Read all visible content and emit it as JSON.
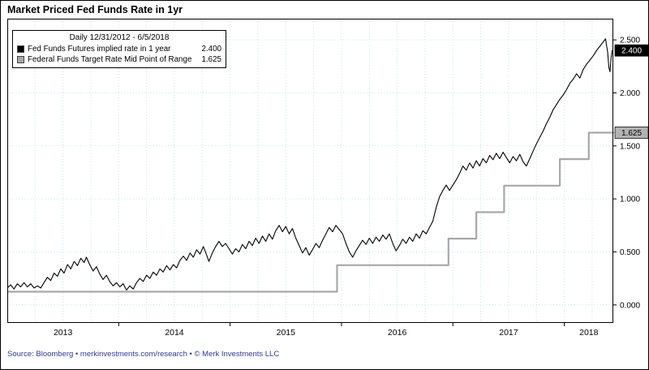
{
  "title": "Market Priced Fed Funds Rate in 1yr",
  "source_line": "Source: Bloomberg • merkinvestments.com/research • © Merk Investments LLC",
  "legend": {
    "title": "Daily 12/31/2012 - 6/5/2018",
    "items": [
      {
        "label": "Fed Funds Futures implied rate in 1 year",
        "value": "2.400",
        "color": "#000000"
      },
      {
        "label": "Federal Funds Target Rate Mid Point of Range",
        "value": "1.625",
        "color": "#a8a8a8"
      }
    ]
  },
  "value_tags": [
    {
      "text": "2.400",
      "value": 2.4,
      "bg": "#000000",
      "fg": "#ffffff"
    },
    {
      "text": "1.625",
      "value": 1.625,
      "bg": "#b2b2b2",
      "fg": "#000000"
    }
  ],
  "chart_data": {
    "type": "line",
    "title": "Market Priced Fed Funds Rate in 1yr",
    "xlabel": "",
    "ylabel": "",
    "date_range": "Daily 12/31/2012 - 6/5/2018",
    "x_range": [
      2013.0,
      2018.44
    ],
    "y_range": [
      -0.17,
      2.7
    ],
    "y_ticks": [
      0.0,
      0.5,
      1.0,
      1.5,
      2.0,
      2.5
    ],
    "y_tick_labels": [
      "0.000",
      "0.500",
      "1.000",
      "1.500",
      "2.000",
      "2.500"
    ],
    "x_tick_years": [
      2013,
      2014,
      2015,
      2016,
      2017,
      2018
    ],
    "x_tick_labels": [
      "2013",
      "2014",
      "2015",
      "2016",
      "2017",
      "2018"
    ],
    "grid": {
      "on": true,
      "color": "#bfe3e7",
      "vertical_step_years": 0.25
    },
    "legend_position": "top-left",
    "axis_side": "right",
    "last_values": {
      "futures_implied_1yr": 2.4,
      "target_rate_midpoint": 1.625
    },
    "series": [
      {
        "id": "futures-implied-rate-series",
        "name": "Fed Funds Futures implied rate in 1 year",
        "color": "#000000",
        "width": 1.1,
        "points": [
          [
            2013.0,
            0.16
          ],
          [
            2013.03,
            0.19
          ],
          [
            2013.06,
            0.15
          ],
          [
            2013.09,
            0.2
          ],
          [
            2013.12,
            0.17
          ],
          [
            2013.15,
            0.21
          ],
          [
            2013.18,
            0.17
          ],
          [
            2013.21,
            0.2
          ],
          [
            2013.24,
            0.16
          ],
          [
            2013.27,
            0.18
          ],
          [
            2013.3,
            0.16
          ],
          [
            2013.33,
            0.21
          ],
          [
            2013.36,
            0.26
          ],
          [
            2013.39,
            0.23
          ],
          [
            2013.42,
            0.3
          ],
          [
            2013.45,
            0.27
          ],
          [
            2013.48,
            0.34
          ],
          [
            2013.51,
            0.3
          ],
          [
            2013.54,
            0.38
          ],
          [
            2013.57,
            0.34
          ],
          [
            2013.6,
            0.41
          ],
          [
            2013.63,
            0.37
          ],
          [
            2013.66,
            0.44
          ],
          [
            2013.69,
            0.4
          ],
          [
            2013.71,
            0.45
          ],
          [
            2013.74,
            0.38
          ],
          [
            2013.77,
            0.32
          ],
          [
            2013.8,
            0.36
          ],
          [
            2013.83,
            0.29
          ],
          [
            2013.86,
            0.24
          ],
          [
            2013.89,
            0.28
          ],
          [
            2013.92,
            0.22
          ],
          [
            2013.95,
            0.18
          ],
          [
            2013.98,
            0.21
          ],
          [
            2014.01,
            0.17
          ],
          [
            2014.04,
            0.2
          ],
          [
            2014.07,
            0.14
          ],
          [
            2014.1,
            0.18
          ],
          [
            2014.13,
            0.15
          ],
          [
            2014.16,
            0.21
          ],
          [
            2014.19,
            0.25
          ],
          [
            2014.22,
            0.22
          ],
          [
            2014.25,
            0.28
          ],
          [
            2014.28,
            0.25
          ],
          [
            2014.31,
            0.31
          ],
          [
            2014.34,
            0.28
          ],
          [
            2014.37,
            0.34
          ],
          [
            2014.4,
            0.31
          ],
          [
            2014.43,
            0.37
          ],
          [
            2014.46,
            0.33
          ],
          [
            2014.49,
            0.38
          ],
          [
            2014.52,
            0.35
          ],
          [
            2014.55,
            0.42
          ],
          [
            2014.58,
            0.46
          ],
          [
            2014.61,
            0.42
          ],
          [
            2014.64,
            0.49
          ],
          [
            2014.67,
            0.45
          ],
          [
            2014.7,
            0.52
          ],
          [
            2014.73,
            0.48
          ],
          [
            2014.76,
            0.55
          ],
          [
            2014.79,
            0.47
          ],
          [
            2014.81,
            0.41
          ],
          [
            2014.84,
            0.49
          ],
          [
            2014.87,
            0.55
          ],
          [
            2014.9,
            0.6
          ],
          [
            2014.93,
            0.55
          ],
          [
            2014.96,
            0.58
          ],
          [
            2014.99,
            0.53
          ],
          [
            2015.02,
            0.48
          ],
          [
            2015.05,
            0.53
          ],
          [
            2015.08,
            0.5
          ],
          [
            2015.11,
            0.57
          ],
          [
            2015.14,
            0.53
          ],
          [
            2015.17,
            0.6
          ],
          [
            2015.2,
            0.56
          ],
          [
            2015.23,
            0.63
          ],
          [
            2015.26,
            0.58
          ],
          [
            2015.29,
            0.65
          ],
          [
            2015.32,
            0.6
          ],
          [
            2015.35,
            0.67
          ],
          [
            2015.38,
            0.62
          ],
          [
            2015.41,
            0.7
          ],
          [
            2015.44,
            0.75
          ],
          [
            2015.47,
            0.69
          ],
          [
            2015.5,
            0.74
          ],
          [
            2015.53,
            0.67
          ],
          [
            2015.56,
            0.72
          ],
          [
            2015.59,
            0.63
          ],
          [
            2015.62,
            0.56
          ],
          [
            2015.65,
            0.49
          ],
          [
            2015.68,
            0.54
          ],
          [
            2015.71,
            0.47
          ],
          [
            2015.74,
            0.52
          ],
          [
            2015.77,
            0.58
          ],
          [
            2015.8,
            0.54
          ],
          [
            2015.83,
            0.61
          ],
          [
            2015.86,
            0.67
          ],
          [
            2015.89,
            0.73
          ],
          [
            2015.92,
            0.69
          ],
          [
            2015.95,
            0.75
          ],
          [
            2015.98,
            0.71
          ],
          [
            2016.01,
            0.67
          ],
          [
            2016.04,
            0.58
          ],
          [
            2016.07,
            0.5
          ],
          [
            2016.1,
            0.45
          ],
          [
            2016.13,
            0.51
          ],
          [
            2016.16,
            0.56
          ],
          [
            2016.19,
            0.61
          ],
          [
            2016.22,
            0.57
          ],
          [
            2016.25,
            0.63
          ],
          [
            2016.28,
            0.58
          ],
          [
            2016.31,
            0.64
          ],
          [
            2016.34,
            0.6
          ],
          [
            2016.37,
            0.66
          ],
          [
            2016.4,
            0.62
          ],
          [
            2016.43,
            0.67
          ],
          [
            2016.46,
            0.58
          ],
          [
            2016.49,
            0.51
          ],
          [
            2016.52,
            0.56
          ],
          [
            2016.55,
            0.62
          ],
          [
            2016.58,
            0.58
          ],
          [
            2016.61,
            0.64
          ],
          [
            2016.64,
            0.6
          ],
          [
            2016.67,
            0.67
          ],
          [
            2016.7,
            0.63
          ],
          [
            2016.73,
            0.7
          ],
          [
            2016.76,
            0.67
          ],
          [
            2016.79,
            0.73
          ],
          [
            2016.82,
            0.79
          ],
          [
            2016.85,
            0.92
          ],
          [
            2016.88,
            1.02
          ],
          [
            2016.91,
            1.08
          ],
          [
            2016.94,
            1.13
          ],
          [
            2016.97,
            1.08
          ],
          [
            2017.0,
            1.13
          ],
          [
            2017.03,
            1.18
          ],
          [
            2017.06,
            1.24
          ],
          [
            2017.09,
            1.31
          ],
          [
            2017.12,
            1.27
          ],
          [
            2017.15,
            1.34
          ],
          [
            2017.18,
            1.29
          ],
          [
            2017.21,
            1.36
          ],
          [
            2017.24,
            1.31
          ],
          [
            2017.27,
            1.38
          ],
          [
            2017.3,
            1.34
          ],
          [
            2017.33,
            1.41
          ],
          [
            2017.36,
            1.37
          ],
          [
            2017.39,
            1.43
          ],
          [
            2017.42,
            1.38
          ],
          [
            2017.45,
            1.44
          ],
          [
            2017.48,
            1.39
          ],
          [
            2017.51,
            1.34
          ],
          [
            2017.54,
            1.4
          ],
          [
            2017.57,
            1.36
          ],
          [
            2017.6,
            1.42
          ],
          [
            2017.63,
            1.35
          ],
          [
            2017.66,
            1.31
          ],
          [
            2017.69,
            1.38
          ],
          [
            2017.72,
            1.45
          ],
          [
            2017.75,
            1.52
          ],
          [
            2017.78,
            1.58
          ],
          [
            2017.81,
            1.64
          ],
          [
            2017.84,
            1.71
          ],
          [
            2017.87,
            1.77
          ],
          [
            2017.9,
            1.84
          ],
          [
            2017.93,
            1.89
          ],
          [
            2017.96,
            1.94
          ],
          [
            2017.99,
            1.98
          ],
          [
            2018.02,
            2.03
          ],
          [
            2018.05,
            2.09
          ],
          [
            2018.08,
            2.13
          ],
          [
            2018.11,
            2.18
          ],
          [
            2018.14,
            2.14
          ],
          [
            2018.17,
            2.22
          ],
          [
            2018.2,
            2.27
          ],
          [
            2018.23,
            2.31
          ],
          [
            2018.26,
            2.35
          ],
          [
            2018.29,
            2.4
          ],
          [
            2018.32,
            2.44
          ],
          [
            2018.35,
            2.48
          ],
          [
            2018.37,
            2.51
          ],
          [
            2018.39,
            2.38
          ],
          [
            2018.4,
            2.24
          ],
          [
            2018.41,
            2.2
          ],
          [
            2018.42,
            2.33
          ],
          [
            2018.43,
            2.4
          ]
        ]
      },
      {
        "id": "target-rate-midpoint-series",
        "name": "Federal Funds Target Rate Mid Point of Range",
        "color": "#a8a8a8",
        "width": 2.2,
        "points": [
          [
            2013.0,
            0.125
          ],
          [
            2015.96,
            0.125
          ],
          [
            2015.96,
            0.375
          ],
          [
            2016.96,
            0.375
          ],
          [
            2016.96,
            0.625
          ],
          [
            2017.21,
            0.625
          ],
          [
            2017.21,
            0.875
          ],
          [
            2017.46,
            0.875
          ],
          [
            2017.46,
            1.125
          ],
          [
            2017.96,
            1.125
          ],
          [
            2017.96,
            1.375
          ],
          [
            2018.22,
            1.375
          ],
          [
            2018.22,
            1.625
          ],
          [
            2018.44,
            1.625
          ]
        ]
      }
    ]
  }
}
